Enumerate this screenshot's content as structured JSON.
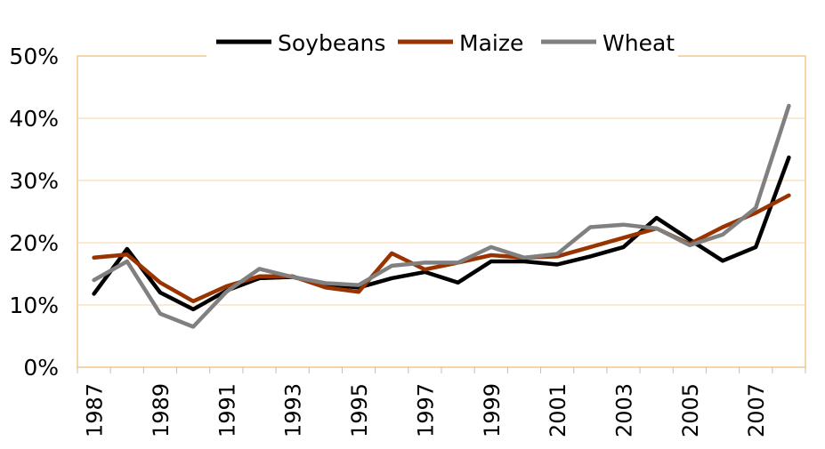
{
  "chart_data": {
    "type": "line",
    "title": "",
    "xlabel": "",
    "ylabel": "",
    "x": [
      1987,
      1988,
      1989,
      1990,
      1991,
      1992,
      1993,
      1994,
      1995,
      1996,
      1997,
      1998,
      1999,
      2000,
      2001,
      2002,
      2003,
      2004,
      2005,
      2006,
      2007,
      2008
    ],
    "x_tick_labels": [
      "1987",
      "1989",
      "1991",
      "1993",
      "1995",
      "1997",
      "1999",
      "2001",
      "2003",
      "2005",
      "2007"
    ],
    "ylim": [
      0,
      50
    ],
    "y_tick_labels": [
      "0%",
      "10%",
      "20%",
      "30%",
      "40%",
      "50%"
    ],
    "grid": "horizontal",
    "legend_position": "top",
    "frame_color": "#f5d5a8",
    "series": [
      {
        "name": "Soybeans",
        "color": "#000000",
        "values": [
          11.8,
          19.0,
          12.0,
          9.3,
          12.3,
          14.3,
          14.5,
          13.3,
          12.8,
          14.3,
          15.3,
          13.6,
          17.0,
          17.0,
          16.5,
          17.8,
          19.3,
          24.0,
          20.5,
          17.1,
          19.3,
          33.7
        ]
      },
      {
        "name": "Maize",
        "color": "#993300",
        "values": [
          17.6,
          18.1,
          13.6,
          10.6,
          13.0,
          14.6,
          14.6,
          12.8,
          12.1,
          18.3,
          15.7,
          16.8,
          18.0,
          17.6,
          17.8,
          19.3,
          20.8,
          22.3,
          19.8,
          22.5,
          24.8,
          27.6
        ]
      },
      {
        "name": "Wheat",
        "color": "#808080",
        "values": [
          14.0,
          17.0,
          8.6,
          6.5,
          12.1,
          15.8,
          14.5,
          13.5,
          13.2,
          16.3,
          16.8,
          16.8,
          19.3,
          17.6,
          18.2,
          22.5,
          22.9,
          22.3,
          19.6,
          21.3,
          25.6,
          42.0
        ]
      }
    ]
  }
}
